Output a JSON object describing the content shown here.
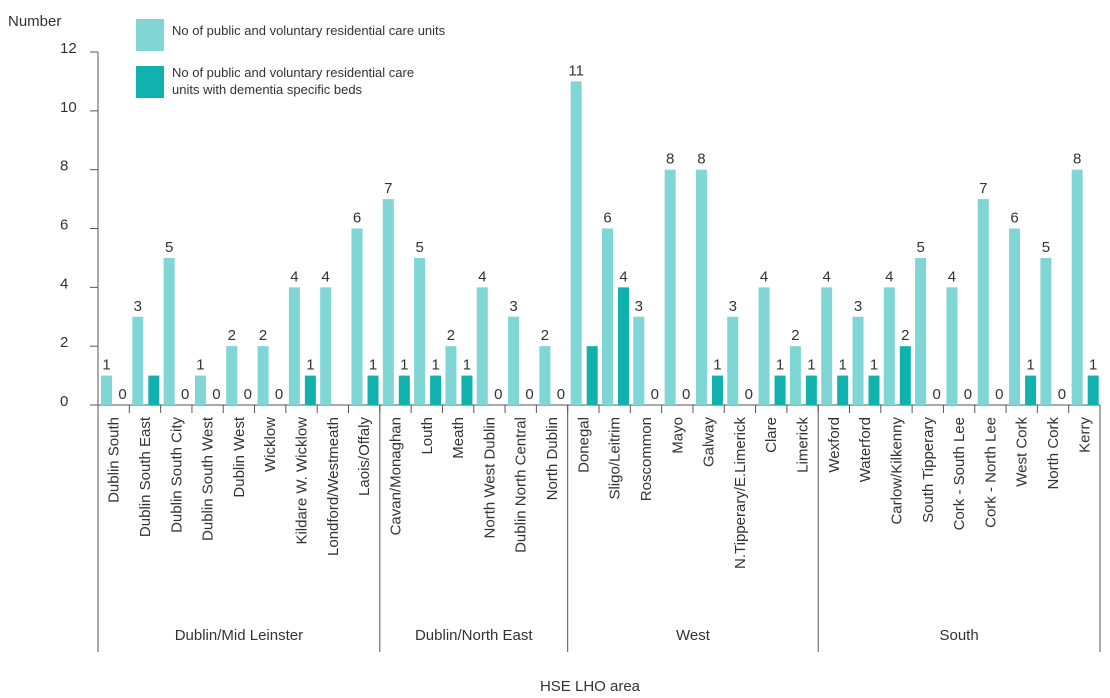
{
  "chart_data": {
    "type": "bar",
    "ylabel": "Number",
    "xlabel": "HSE LHO area",
    "ylim": [
      0,
      12
    ],
    "yticks": [
      0,
      2,
      4,
      6,
      8,
      10,
      12
    ],
    "grid": false,
    "legend_position": "top-left",
    "categories": [
      "Dublin South",
      "Dublin South East",
      "Dublin South City",
      "Dublin South West",
      "Dublin West",
      "Wicklow",
      "Kildare W. Wicklow",
      "Londford/Westmeath",
      "Laois/Offaly",
      "Cavan/Monaghan",
      "Louth",
      "Meath",
      "North West Dublin",
      "Dublin North Central",
      "North Dublin",
      "Donegal",
      "Sligo/Leitrim",
      "Roscommon",
      "Mayo",
      "Galway",
      "N.Tipperary/E.Limerick",
      "Clare",
      "Limerick",
      "Wexford",
      "Waterford",
      "Carlow/Kilkenny",
      "South Tipperary",
      "Cork - South Lee",
      "Cork - North Lee",
      "West Cork",
      "North Cork",
      "Kerry"
    ],
    "groups": [
      {
        "name": "Dublin/Mid Leinster",
        "count": 9
      },
      {
        "name": "Dublin/North East",
        "count": 6
      },
      {
        "name": "West",
        "count": 8
      },
      {
        "name": "South",
        "count": 9
      }
    ],
    "series": [
      {
        "name": "No of public and voluntary residential care units",
        "color": "#7fd6d4",
        "values": [
          1,
          3,
          5,
          1,
          2,
          2,
          4,
          4,
          6,
          7,
          5,
          2,
          4,
          3,
          2,
          11,
          6,
          3,
          8,
          8,
          3,
          4,
          2,
          4,
          3,
          4,
          5,
          4,
          7,
          6,
          5,
          8
        ],
        "labels": [
          "1",
          "3",
          "5",
          "1",
          "2",
          "2",
          "4",
          "4",
          "6",
          "7",
          "5",
          "2",
          "4",
          "3",
          "2",
          "11",
          "6",
          "3",
          "8",
          "8",
          "3",
          "4",
          "2",
          "4",
          "3",
          "4",
          "5",
          "4",
          "7",
          "6",
          "5",
          "8"
        ]
      },
      {
        "name": "No of public and voluntary residential care units with dementia specific beds",
        "color": "#11b1ad",
        "values": [
          0,
          1,
          0,
          0,
          0,
          0,
          1,
          0,
          1,
          1,
          1,
          1,
          0,
          0,
          0,
          2,
          4,
          0,
          0,
          1,
          0,
          1,
          1,
          1,
          1,
          2,
          0,
          0,
          0,
          1,
          0,
          1
        ],
        "labels": [
          "0",
          "",
          "0",
          "0",
          "0",
          "0",
          "1",
          "",
          "1",
          "1",
          "1",
          "1",
          "0",
          "0",
          "0",
          "",
          "4",
          "0",
          "0",
          "1",
          "0",
          "1",
          "1",
          "1",
          "1",
          "2",
          "0",
          "0",
          "0",
          "1",
          "0",
          "1"
        ]
      }
    ],
    "legend": [
      {
        "lines": [
          "No of public and voluntary residential care units"
        ]
      },
      {
        "lines": [
          "No of public and voluntary residential care",
          "units with dementia specific beds"
        ]
      }
    ]
  }
}
